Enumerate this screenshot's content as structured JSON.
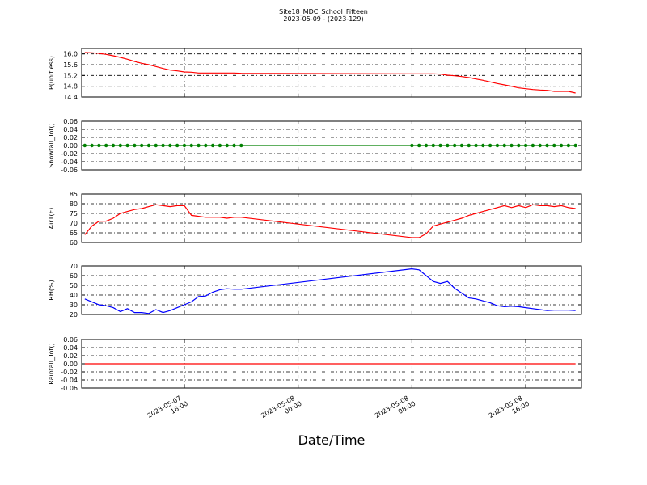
{
  "title": "Site18_MDC_School_Fifteen",
  "subtitle": "2023-05-09 - (2023-129)",
  "xlabel": "Date/Time",
  "xlim": [
    "2023-05-07 08:47",
    "2023-05-08 19:55"
  ],
  "xticks": [
    {
      "value": "2023-05-07 16:00",
      "label": "2023-05-07\n16:00"
    },
    {
      "value": "2023-05-08 00:00",
      "label": "2023-05-08\n00:00"
    },
    {
      "value": "2023-05-08 08:00",
      "label": "2023-05-08\n08:00"
    },
    {
      "value": "2023-05-08 16:00",
      "label": "2023-05-08\n16:00"
    }
  ],
  "grid": true,
  "x": [
    "2023-05-07 09:00",
    "2023-05-07 09:30",
    "2023-05-07 10:00",
    "2023-05-07 10:30",
    "2023-05-07 11:00",
    "2023-05-07 11:30",
    "2023-05-07 12:00",
    "2023-05-07 12:30",
    "2023-05-07 13:00",
    "2023-05-07 13:30",
    "2023-05-07 14:00",
    "2023-05-07 14:30",
    "2023-05-07 15:00",
    "2023-05-07 15:30",
    "2023-05-07 16:00",
    "2023-05-07 16:30",
    "2023-05-07 17:00",
    "2023-05-07 17:30",
    "2023-05-07 18:00",
    "2023-05-07 18:30",
    "2023-05-07 19:00",
    "2023-05-07 19:30",
    "2023-05-07 20:00",
    "2023-05-08 08:00",
    "2023-05-08 08:30",
    "2023-05-08 09:00",
    "2023-05-08 09:30",
    "2023-05-08 10:00",
    "2023-05-08 10:30",
    "2023-05-08 11:00",
    "2023-05-08 11:30",
    "2023-05-08 12:00",
    "2023-05-08 12:30",
    "2023-05-08 13:00",
    "2023-05-08 13:30",
    "2023-05-08 14:00",
    "2023-05-08 14:30",
    "2023-05-08 15:00",
    "2023-05-08 15:30",
    "2023-05-08 16:00",
    "2023-05-08 16:30",
    "2023-05-08 17:00",
    "2023-05-08 17:30",
    "2023-05-08 18:00",
    "2023-05-08 18:30",
    "2023-05-08 19:00",
    "2023-05-08 19:30"
  ],
  "chart_data": [
    {
      "type": "line",
      "ylabel": "P(unitless)",
      "ylim": [
        14.4,
        16.2
      ],
      "yticks": [
        14.4,
        14.8,
        15.2,
        15.6,
        {
          "value": 16,
          "label": "16.0"
        }
      ],
      "series": [
        {
          "color": "#ff0000",
          "marker": false,
          "values": [
            16.05,
            16.04,
            16.02,
            15.98,
            15.93,
            15.87,
            15.8,
            15.72,
            15.65,
            15.6,
            15.53,
            15.46,
            15.4,
            15.37,
            15.33,
            15.32,
            15.29,
            15.29,
            15.29,
            15.29,
            15.29,
            15.29,
            15.28,
            15.26,
            15.26,
            15.26,
            15.26,
            15.25,
            15.21,
            15.19,
            15.16,
            15.12,
            15.07,
            15.02,
            14.96,
            14.9,
            14.85,
            14.8,
            14.74,
            14.71,
            14.68,
            14.66,
            14.65,
            14.61,
            14.61,
            14.61,
            14.55
          ]
        }
      ]
    },
    {
      "type": "line",
      "ylabel": "Snowfall_Tot()",
      "ylim": [
        -0.06,
        0.06
      ],
      "yticks": [
        -0.06,
        -0.04,
        -0.02,
        {
          "value": 0,
          "label": "0.00"
        },
        0.02,
        0.04,
        0.06
      ],
      "series": [
        {
          "color": "#008000",
          "marker": true,
          "values": [
            0,
            0,
            0,
            0,
            0,
            0,
            0,
            0,
            0,
            0,
            0,
            0,
            0,
            0,
            0,
            0,
            0,
            0,
            0,
            0,
            0,
            0,
            0,
            0,
            0,
            0,
            0,
            0,
            0,
            0,
            0,
            0,
            0,
            0,
            0,
            0,
            0,
            0,
            0,
            0,
            0,
            0,
            0,
            0,
            0,
            0,
            0
          ]
        }
      ]
    },
    {
      "type": "line",
      "ylabel": "AirT(F)",
      "ylim": [
        60,
        85
      ],
      "yticks": [
        60,
        65,
        70,
        75,
        80,
        85
      ],
      "series": [
        {
          "color": "#ff0000",
          "marker": false,
          "values": [
            64,
            68.5,
            71,
            71,
            72.5,
            75,
            76,
            77,
            77.5,
            78.5,
            79.5,
            79,
            78.5,
            79,
            79,
            74,
            73.5,
            73,
            73,
            73,
            72.5,
            73,
            73,
            62.5,
            62.5,
            64.5,
            68.5,
            69.5,
            70.5,
            71.5,
            72.5,
            74,
            75,
            76,
            77,
            78,
            79,
            78,
            79,
            78,
            79.5,
            79,
            79,
            78.5,
            79,
            78,
            77.5
          ]
        }
      ]
    },
    {
      "type": "line",
      "ylabel": "RH(%)",
      "ylim": [
        20,
        70
      ],
      "yticks": [
        20,
        30,
        40,
        50,
        60,
        70
      ],
      "series": [
        {
          "color": "#0000ff",
          "marker": false,
          "values": [
            36,
            33,
            30,
            29,
            27,
            23,
            26,
            22,
            22,
            21,
            25,
            22,
            24,
            27,
            30,
            33,
            38.5,
            39,
            43,
            45.5,
            46.5,
            46,
            46,
            67,
            66,
            60,
            54,
            52,
            54,
            47,
            42,
            37,
            36,
            34,
            32,
            29,
            28,
            28.5,
            28,
            27,
            26,
            25,
            24,
            24.5,
            24.5,
            24.5,
            24
          ]
        }
      ]
    },
    {
      "type": "line",
      "ylabel": "Rainfall_Tot()",
      "ylim": [
        -0.06,
        0.06
      ],
      "yticks": [
        -0.06,
        -0.04,
        -0.02,
        {
          "value": 0,
          "label": "0.00"
        },
        0.02,
        0.04,
        0.06
      ],
      "series": [
        {
          "color": "#ff0000",
          "marker": false,
          "values": [
            0,
            0,
            0,
            0,
            0,
            0,
            0,
            0,
            0,
            0,
            0,
            0,
            0,
            0,
            0,
            0,
            0,
            0,
            0,
            0,
            0,
            0,
            0,
            0,
            0,
            0,
            0,
            0,
            0,
            0,
            0,
            0,
            0,
            0,
            0,
            0,
            0,
            0,
            0,
            0,
            0,
            0,
            0,
            0,
            0,
            0,
            0
          ]
        }
      ]
    }
  ]
}
